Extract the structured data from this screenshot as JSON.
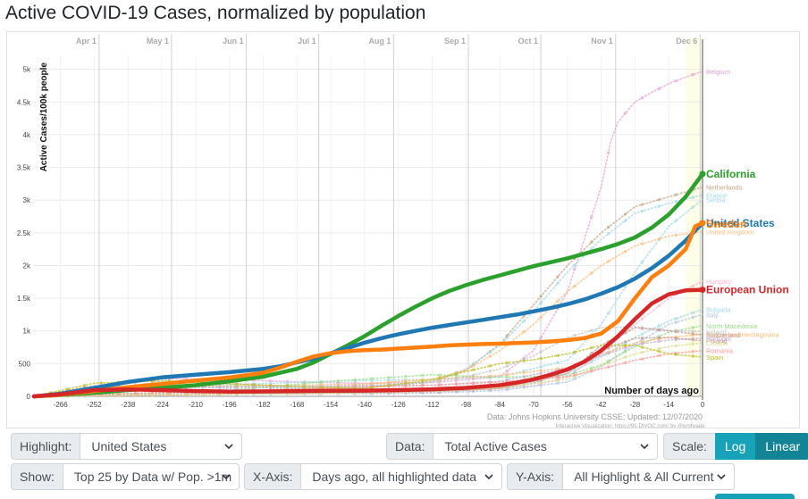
{
  "page": {
    "title": "Active COVID-19 Cases, normalized by population"
  },
  "controls": {
    "highlight": {
      "label": "Highlight:",
      "value": "United States"
    },
    "data": {
      "label": "Data:",
      "value": "Total Active Cases"
    },
    "scale": {
      "label": "Scale:",
      "log": "Log",
      "linear": "Linear",
      "selected": "Linear"
    },
    "show": {
      "label": "Show:",
      "value": "Top 25 by Data w/ Pop. >1m"
    },
    "xaxis": {
      "label": "X-Axis:",
      "value": "Days ago, all highlighted data"
    },
    "yaxis": {
      "label": "Y-Axis:",
      "value": "All Highlight & All Current"
    }
  },
  "colors": {
    "accent": "#17a2b8",
    "accent_dark": "#138496"
  },
  "chart_data": {
    "type": "line",
    "title": "Active COVID-19 Cases, normalized by population",
    "ylabel": "Active Cases/100k people",
    "xlabel": "Number of days ago",
    "xlim": [
      -277,
      0
    ],
    "ylim": [
      0,
      5200
    ],
    "x_ticks": [
      -266,
      -252,
      -238,
      -224,
      -210,
      -196,
      -182,
      -168,
      -154,
      -140,
      -126,
      -112,
      -98,
      -84,
      -70,
      -56,
      -42,
      -28,
      -14,
      0
    ],
    "y_ticks": [
      0,
      500,
      1000,
      1500,
      2000,
      2500,
      3000,
      3500,
      4000,
      4500,
      5000
    ],
    "y_tick_labels": [
      "0",
      "500",
      "1k",
      "1.5k",
      "2k",
      "2.5k",
      "3k",
      "3.5k",
      "4k",
      "4.5k",
      "5k"
    ],
    "month_markers": [
      {
        "label": "Apr 1",
        "x": -250
      },
      {
        "label": "May 1",
        "x": -220
      },
      {
        "label": "Jun 1",
        "x": -189
      },
      {
        "label": "Jul 1",
        "x": -159
      },
      {
        "label": "Aug 1",
        "x": -128
      },
      {
        "label": "Sep 1",
        "x": -97
      },
      {
        "label": "Oct 1",
        "x": -67
      },
      {
        "label": "Nov 1",
        "x": -36
      },
      {
        "label": "Dec 6",
        "x": -1
      }
    ],
    "grid": true,
    "source": "Data: Johns Hopkins University CSSE; Updated: 12/07/2020",
    "credit": "Interactive Visualization: https://91-DIVOC.com/ by @profwade_",
    "highlighted_series": [
      {
        "name": "California",
        "color": "#2ca02c",
        "x": [
          -277,
          -266,
          -252,
          -238,
          -224,
          -210,
          -196,
          -182,
          -175,
          -168,
          -161,
          -154,
          -147,
          -140,
          -133,
          -126,
          -119,
          -112,
          -105,
          -98,
          -91,
          -84,
          -77,
          -70,
          -63,
          -56,
          -49,
          -42,
          -35,
          -28,
          -21,
          -14,
          -7,
          0
        ],
        "y": [
          0,
          20,
          55,
          95,
          130,
          170,
          230,
          300,
          360,
          420,
          520,
          650,
          780,
          920,
          1080,
          1230,
          1370,
          1500,
          1610,
          1700,
          1780,
          1850,
          1920,
          1990,
          2050,
          2110,
          2180,
          2250,
          2330,
          2430,
          2580,
          2780,
          3050,
          3400
        ]
      },
      {
        "name": "United States",
        "color": "#1f77b4",
        "x": [
          -277,
          -266,
          -252,
          -238,
          -224,
          -210,
          -196,
          -182,
          -175,
          -168,
          -161,
          -154,
          -147,
          -140,
          -133,
          -126,
          -119,
          -112,
          -105,
          -98,
          -91,
          -84,
          -77,
          -70,
          -63,
          -56,
          -49,
          -42,
          -35,
          -28,
          -21,
          -14,
          -7,
          0
        ],
        "y": [
          0,
          40,
          130,
          220,
          290,
          330,
          370,
          420,
          460,
          520,
          580,
          660,
          740,
          820,
          890,
          950,
          1000,
          1050,
          1090,
          1130,
          1170,
          1210,
          1250,
          1300,
          1350,
          1410,
          1480,
          1570,
          1670,
          1800,
          1960,
          2150,
          2380,
          2650
        ]
      },
      {
        "name": "Sweden",
        "color": "#ff7f0e",
        "x": [
          -277,
          -266,
          -252,
          -238,
          -224,
          -210,
          -196,
          -182,
          -175,
          -168,
          -161,
          -154,
          -147,
          -140,
          -133,
          -126,
          -119,
          -112,
          -105,
          -98,
          -91,
          -84,
          -77,
          -70,
          -63,
          -56,
          -49,
          -42,
          -35,
          -28,
          -21,
          -14,
          -7,
          -3,
          0
        ],
        "y": [
          0,
          25,
          80,
          140,
          190,
          240,
          290,
          360,
          440,
          530,
          610,
          660,
          690,
          705,
          715,
          730,
          745,
          760,
          780,
          790,
          800,
          805,
          815,
          825,
          840,
          860,
          890,
          960,
          1150,
          1500,
          1820,
          2000,
          2250,
          2600,
          2650
        ]
      },
      {
        "name": "European Union",
        "color": "#d62728",
        "x": [
          -277,
          -266,
          -252,
          -238,
          -224,
          -210,
          -196,
          -182,
          -168,
          -154,
          -140,
          -126,
          -112,
          -98,
          -84,
          -77,
          -70,
          -63,
          -56,
          -49,
          -42,
          -35,
          -28,
          -21,
          -14,
          -7,
          0
        ],
        "y": [
          0,
          30,
          95,
          105,
          95,
          80,
          72,
          75,
          80,
          84,
          88,
          95,
          108,
          130,
          170,
          210,
          260,
          330,
          410,
          530,
          700,
          920,
          1180,
          1420,
          1560,
          1620,
          1630
        ]
      }
    ],
    "other_series": [
      {
        "name": "Belgium",
        "color": "#e7a1d6",
        "end": 4970,
        "x": [
          -277,
          -252,
          -224,
          -196,
          -168,
          -140,
          -112,
          -84,
          -70,
          -56,
          -42,
          -38,
          -35,
          -28,
          -21,
          -14,
          -7,
          0
        ],
        "y": [
          0,
          150,
          270,
          260,
          220,
          200,
          210,
          300,
          700,
          1600,
          3200,
          3900,
          4200,
          4500,
          4650,
          4780,
          4880,
          4970
        ]
      },
      {
        "name": "Netherlands",
        "color": "#c5a384",
        "end": 3200,
        "x": [
          -277,
          -252,
          -224,
          -196,
          -168,
          -140,
          -112,
          -98,
          -84,
          -70,
          -56,
          -42,
          -28,
          -14,
          0
        ],
        "y": [
          0,
          80,
          160,
          150,
          120,
          130,
          220,
          400,
          800,
          1400,
          2000,
          2500,
          2900,
          3050,
          3200
        ]
      },
      {
        "name": "France",
        "color": "#9edae5",
        "end": 3080,
        "x": [
          -277,
          -252,
          -224,
          -196,
          -168,
          -140,
          -112,
          -98,
          -84,
          -70,
          -56,
          -42,
          -28,
          -14,
          0
        ],
        "y": [
          0,
          90,
          170,
          160,
          130,
          140,
          230,
          420,
          780,
          1300,
          1900,
          2400,
          2800,
          2950,
          3080
        ]
      },
      {
        "name": "Serbia",
        "color": "#9edae5",
        "end": 3010,
        "x": [
          -277,
          -238,
          -196,
          -154,
          -112,
          -84,
          -56,
          -42,
          -28,
          -14,
          0
        ],
        "y": [
          0,
          120,
          180,
          230,
          260,
          300,
          550,
          1100,
          1900,
          2600,
          3010
        ]
      },
      {
        "name": "United Kingdom",
        "color": "#ffbb78",
        "end": 2520,
        "x": [
          -277,
          -252,
          -224,
          -196,
          -168,
          -140,
          -112,
          -98,
          -84,
          -70,
          -56,
          -42,
          -28,
          -14,
          0
        ],
        "y": [
          0,
          70,
          140,
          160,
          170,
          190,
          260,
          400,
          700,
          1100,
          1600,
          2000,
          2300,
          2450,
          2520
        ]
      },
      {
        "name": "Hungary",
        "color": "#f7b6d2",
        "end": 1760,
        "x": [
          -277,
          -196,
          -140,
          -98,
          -70,
          -56,
          -42,
          -28,
          -14,
          0
        ],
        "y": [
          0,
          40,
          60,
          90,
          160,
          300,
          650,
          1100,
          1500,
          1760
        ]
      },
      {
        "name": "Bulgaria",
        "color": "#9edae5",
        "end": 1330,
        "x": [
          -277,
          -196,
          -140,
          -98,
          -70,
          -56,
          -42,
          -28,
          -14,
          0
        ],
        "y": [
          0,
          30,
          60,
          120,
          220,
          350,
          600,
          900,
          1150,
          1330
        ]
      },
      {
        "name": "Italy",
        "color": "#aec7e8",
        "end": 1250,
        "x": [
          -277,
          -252,
          -224,
          -196,
          -168,
          -140,
          -112,
          -84,
          -56,
          -42,
          -28,
          -14,
          0
        ],
        "y": [
          0,
          120,
          170,
          120,
          60,
          40,
          50,
          90,
          220,
          450,
          800,
          1100,
          1250
        ]
      },
      {
        "name": "North Macedonia",
        "color": "#98df8a",
        "end": 1080,
        "x": [
          -277,
          -196,
          -154,
          -112,
          -84,
          -56,
          -42,
          -28,
          -14,
          0
        ],
        "y": [
          0,
          90,
          230,
          330,
          290,
          320,
          480,
          760,
          980,
          1080
        ]
      },
      {
        "name": "Bosnia and Herzegovina",
        "color": "#ffbb78",
        "end": 950,
        "x": [
          -277,
          -196,
          -154,
          -112,
          -84,
          -56,
          -42,
          -28,
          -14,
          0
        ],
        "y": [
          0,
          30,
          140,
          260,
          320,
          440,
          640,
          820,
          900,
          950
        ]
      },
      {
        "name": "Ireland",
        "color": "#c7c7c7",
        "end": 990,
        "x": [
          -277,
          -252,
          -224,
          -196,
          -168,
          -140,
          -112,
          -98,
          -84,
          -70,
          -56,
          -42,
          -28,
          -14,
          0
        ],
        "y": [
          0,
          90,
          230,
          200,
          150,
          160,
          220,
          300,
          420,
          620,
          900,
          1050,
          1060,
          1010,
          990
        ]
      },
      {
        "name": "Switzerland",
        "color": "#c49c94",
        "end": 940,
        "x": [
          -277,
          -252,
          -224,
          -196,
          -168,
          -140,
          -112,
          -84,
          -56,
          -42,
          -28,
          -14,
          0
        ],
        "y": [
          0,
          160,
          120,
          60,
          40,
          50,
          70,
          120,
          350,
          780,
          1050,
          1000,
          940
        ]
      },
      {
        "name": "Portugal",
        "color": "#c5b0d5",
        "end": 890,
        "x": [
          -277,
          -252,
          -224,
          -196,
          -168,
          -140,
          -112,
          -84,
          -56,
          -42,
          -28,
          -14,
          0
        ],
        "y": [
          0,
          70,
          130,
          140,
          150,
          160,
          170,
          230,
          430,
          620,
          790,
          860,
          890
        ]
      },
      {
        "name": "Poland",
        "color": "#c49c94",
        "end": 850,
        "x": [
          -277,
          -224,
          -168,
          -112,
          -84,
          -70,
          -56,
          -42,
          -28,
          -14,
          0
        ],
        "y": [
          0,
          40,
          60,
          80,
          120,
          200,
          400,
          700,
          890,
          900,
          850
        ]
      },
      {
        "name": "Croatia",
        "color": "#dbdb8d",
        "end": 820,
        "x": [
          -277,
          -224,
          -168,
          -112,
          -84,
          -56,
          -42,
          -28,
          -14,
          0
        ],
        "y": [
          0,
          30,
          40,
          80,
          130,
          260,
          470,
          650,
          760,
          820
        ]
      },
      {
        "name": "Romania",
        "color": "#ff9896",
        "end": 700,
        "x": [
          -277,
          -224,
          -168,
          -112,
          -84,
          -56,
          -42,
          -28,
          -14,
          0
        ],
        "y": [
          0,
          60,
          110,
          170,
          220,
          300,
          420,
          550,
          650,
          700
        ]
      },
      {
        "name": "Spain",
        "color": "#bcbd22",
        "end": 600,
        "x": [
          -277,
          -252,
          -224,
          -196,
          -168,
          -140,
          -112,
          -98,
          -84,
          -70,
          -56,
          -42,
          -28,
          -14,
          0
        ],
        "y": [
          0,
          200,
          240,
          190,
          150,
          120,
          250,
          380,
          500,
          560,
          650,
          780,
          780,
          650,
          600
        ]
      }
    ]
  }
}
